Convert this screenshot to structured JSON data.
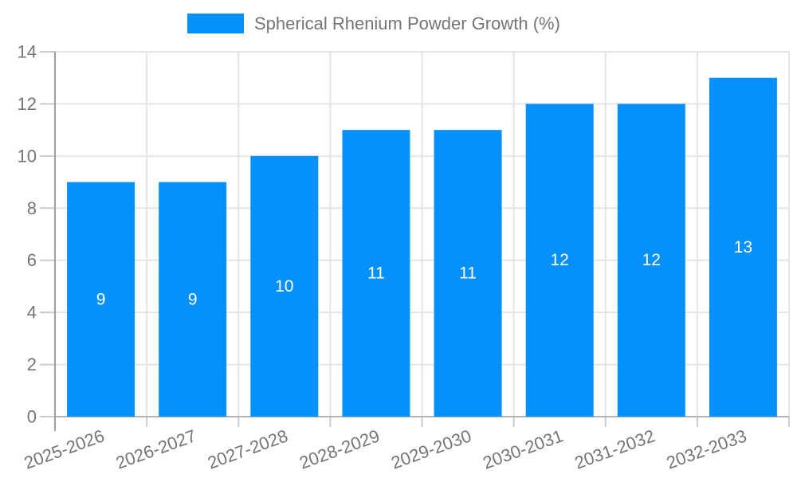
{
  "legend": {
    "label": "Spherical Rhenium Powder Growth (%)"
  },
  "chart_data": {
    "type": "bar",
    "title": "Spherical Rhenium Powder Growth (%)",
    "series_name": "Spherical Rhenium Powder Growth (%)",
    "categories": [
      "2025-2026",
      "2026-2027",
      "2027-2028",
      "2028-2029",
      "2029-2030",
      "2030-2031",
      "2031-2032",
      "2032-2033"
    ],
    "values": [
      9,
      9,
      10,
      11,
      11,
      12,
      12,
      13
    ],
    "value_labels": [
      "9",
      "9",
      "10",
      "11",
      "11",
      "12",
      "12",
      "13"
    ],
    "y_tick_labels": [
      "0",
      "2",
      "4",
      "6",
      "8",
      "10",
      "12",
      "14"
    ],
    "ylim": [
      0,
      14
    ],
    "ytick_step": 2,
    "xlabel": "",
    "ylabel": "",
    "grid": true,
    "legend_position": "top",
    "x_label_rotation_deg": -20,
    "colors": {
      "bar": "#0590FA",
      "bar_value_text": "#ffffff",
      "axis_text": "#757575",
      "gridline": "#e5e5e5",
      "tick": "#cccccc",
      "y_axis_line": "#9e9e9e",
      "x_axis_line": "#b5b5b5",
      "background": "#ffffff"
    }
  }
}
